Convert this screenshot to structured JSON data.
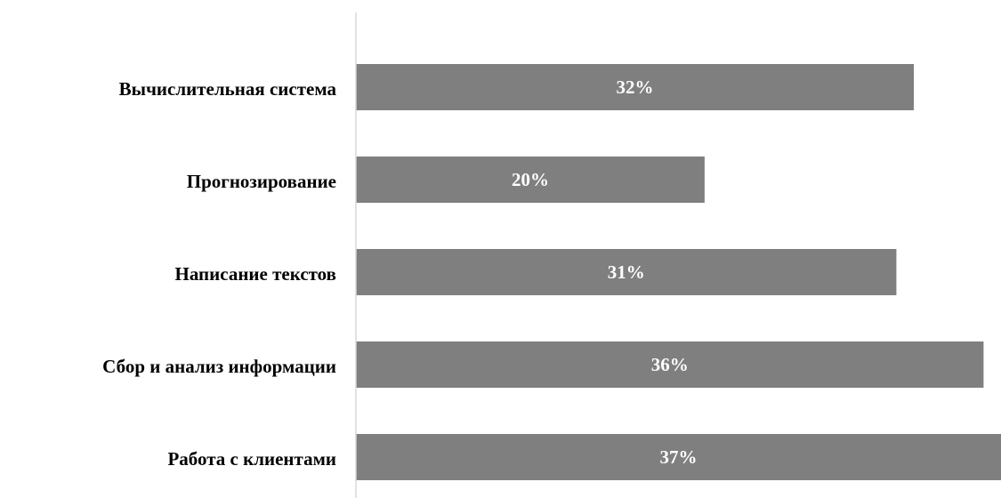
{
  "chart_data": {
    "type": "bar",
    "orientation": "horizontal",
    "categories": [
      "Вычислительная система",
      "Прогнозирование",
      "Написание текстов ",
      "Сбор и анализ информации",
      "Работа с клиентами"
    ],
    "values": [
      32,
      20,
      31,
      36,
      37
    ],
    "data_labels": [
      "32%",
      "20%",
      "31%",
      "36%",
      "37%"
    ],
    "unit": "%",
    "xlim": [
      0,
      37
    ],
    "grid": false,
    "legend": "none",
    "bar_color": "#7f7f7f",
    "axis_color": "#d9d9d9"
  }
}
